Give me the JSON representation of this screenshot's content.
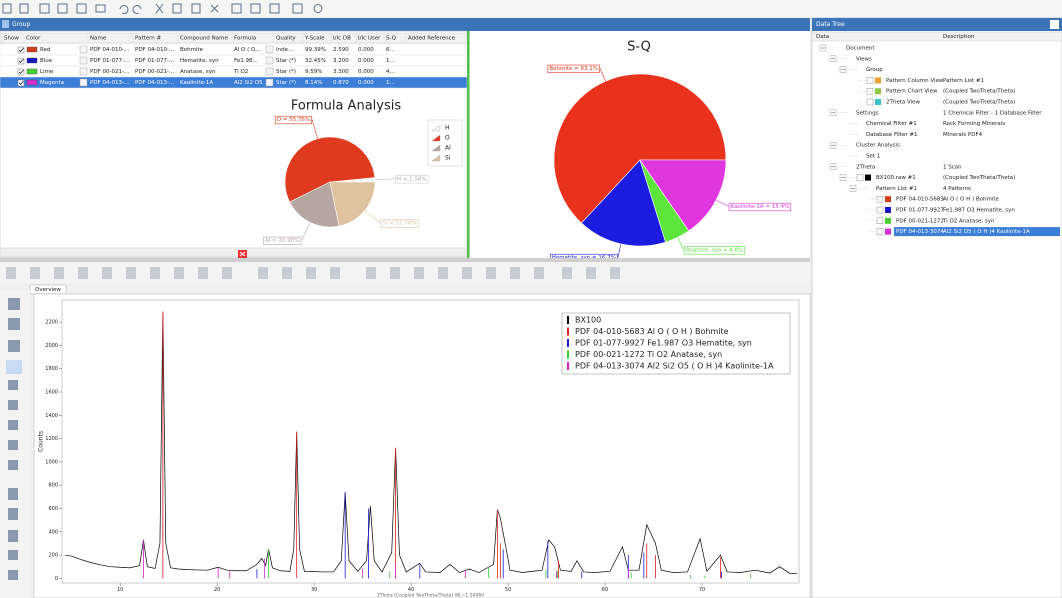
{
  "group_tab": "Group",
  "table": {
    "headers": [
      "Show",
      "Color",
      "Name",
      "Pattern #",
      "Compound Name",
      "Formula",
      "Quality",
      "Y-Scale",
      "I/Ic DB",
      "I/Ic User",
      "S-Q",
      "Added Reference"
    ],
    "rows": [
      {
        "color": "#d23c1a",
        "cells": [
          "Red",
          "PDF 04-010-...",
          "PDF 04-010-...",
          "Bohmite",
          "Al O ( O...",
          "Inde...",
          "99.39%",
          "2.590",
          "0.000",
          "6..."
        ]
      },
      {
        "color": "#1717c8",
        "cells": [
          "Blue",
          "PDF 01-077-...",
          "PDF 01-077-...",
          "Hematite, syn",
          "Fe1.98...",
          "Star (*)",
          "32.45%",
          "3.200",
          "0.000",
          "1..."
        ]
      },
      {
        "color": "#44d12e",
        "cells": [
          "Lime",
          "PDF 00-021-...",
          "PDF 00-021-...",
          "Anatase, syn",
          "Ti O2",
          "Star (*)",
          "9.59%",
          "3.300",
          "0.000",
          "4..."
        ]
      },
      {
        "color": "#d52ed5",
        "cells": [
          "Magenta",
          "PDF 04-013-...",
          "PDF 04-013-...",
          "Kaolinite-1A",
          "Al2 Si2 O5 ...",
          "Star (*)",
          "8.14%",
          "0.870",
          "0.000",
          "1..."
        ]
      }
    ],
    "selected_row": 3
  },
  "overview_tab": "Overview",
  "data_tree": {
    "title": "Data Tree",
    "headers": [
      "Data",
      "Description"
    ],
    "nodes": [
      {
        "label": "Document",
        "children": [
          {
            "label": "Views",
            "children": [
              {
                "label": "Group",
                "children": [
                  {
                    "label": "Pattern Column View",
                    "description": "Pattern List #1",
                    "color": "#f0a030"
                  },
                  {
                    "label": "Pattern Chart View",
                    "description": "(Coupled TwoTheta/Theta)",
                    "color": "#8cc840"
                  },
                  {
                    "label": "2Theta View",
                    "description": "(Coupled TwoTheta/Theta)",
                    "color": "#40c0c8"
                  }
                ]
              }
            ]
          },
          {
            "label": "Settings",
            "description": "1 Chemical Filter - 1 Database Filter",
            "children": [
              {
                "label": "Chemical Filter #1",
                "description": "Rock Forming Minerals"
              },
              {
                "label": "Database Filter #1",
                "description": "Minerals PDF4"
              }
            ]
          },
          {
            "label": "Cluster Analysis",
            "children": [
              {
                "label": "Set 1"
              }
            ]
          },
          {
            "label": "2Theta",
            "description": "1 Scan",
            "children": [
              {
                "label": "BX100.raw #1",
                "description": "(Coupled TwoTheta/Theta)",
                "color": "#000000",
                "children": [
                  {
                    "label": "Pattern List #1",
                    "description": "4 Patterns",
                    "children": [
                      {
                        "label": "PDF 04-010-5683",
                        "description": "Al O ( O H ) Bohmite",
                        "color": "#d23c1a"
                      },
                      {
                        "label": "PDF 01-077-9927",
                        "description": "Fe1.987 O3 Hematite, syn",
                        "color": "#1717c8"
                      },
                      {
                        "label": "PDF 00-021-1272",
                        "description": "Ti O2 Anatase, syn",
                        "color": "#44d12e"
                      },
                      {
                        "label": "PDF 04-013-3074",
                        "description": "Al2 Si2 O5 ( O H )4 Kaolinite-1A",
                        "color": "#d52ed5",
                        "selected": true
                      }
                    ]
                  }
                ]
              }
            ]
          }
        ]
      }
    ]
  },
  "chart_data": [
    {
      "type": "pie",
      "title": "Formula Analysis",
      "categories": [
        "H",
        "O",
        "Al",
        "Si"
      ],
      "values": [
        1.56,
        55.76,
        20.9,
        21.78
      ],
      "value_labels": [
        "H = 1.56%",
        "O = 55.76%",
        "Al = 20.90%",
        "Si = 21.78%"
      ],
      "colors": [
        "#f4f4f4",
        "#e03a1e",
        "#b5a6a2",
        "#dfc3a1"
      ],
      "legend": true
    },
    {
      "type": "pie",
      "title": "S-Q",
      "values": [
        63.1,
        16.7,
        4.8,
        15.4
      ],
      "value_labels": [
        "Bohmite = 63.1%",
        "Hematite, syn = 16.7%",
        "Anatase, syn = 4.8%",
        "Kaolinite-1A = 15.4%"
      ],
      "colors": [
        "#e8321c",
        "#1c1ce0",
        "#5ce63c",
        "#e036e0"
      ],
      "legend": false
    },
    {
      "type": "line",
      "xlabel": "2Theta (Coupled TwoTheta/Theta) WL=1.54060",
      "ylabel": "Counts",
      "xlim": [
        4,
        80
      ],
      "ylim": [
        -40,
        2390
      ],
      "xticks": [
        10,
        20,
        30,
        40,
        50,
        60,
        70
      ],
      "yticks": [
        0,
        200,
        400,
        600,
        800,
        1000,
        1200,
        1400,
        1600,
        1800,
        2000,
        2200
      ],
      "legend": "upper right",
      "series": [
        {
          "name": "BX100",
          "color": "#000000",
          "style": "line",
          "x": [
            4.3,
            5,
            6,
            7,
            8,
            9,
            10,
            11,
            12,
            12.4,
            12.8,
            13.6,
            14.1,
            14.4,
            14.7,
            15.2,
            16,
            17,
            18,
            19,
            20.1,
            21,
            22,
            23,
            24.1,
            24.6,
            25,
            25.3,
            25.7,
            26.5,
            27.5,
            27.9,
            28.2,
            28.5,
            29,
            30,
            31,
            32,
            32.8,
            33.2,
            33.6,
            34.5,
            35.4,
            35.8,
            36.2,
            37,
            38,
            38.4,
            38.8,
            39.5,
            40.9,
            41.5,
            43,
            44,
            45,
            46,
            47,
            48.5,
            48.9,
            49.2,
            49.7,
            50.2,
            51.5,
            52.5,
            53.5,
            54.2,
            54.8,
            55.4,
            56.5,
            57.1,
            57.8,
            59,
            60.5,
            61.8,
            62.4,
            63.5,
            64.3,
            65.2,
            65.8,
            67,
            68.5,
            69.8,
            70.5,
            71.9,
            72.6,
            74,
            75.5,
            77,
            78,
            79,
            79.8
          ],
          "values": [
            200,
            190,
            160,
            135,
            115,
            100,
            95,
            90,
            110,
            330,
            100,
            85,
            300,
            2290,
            300,
            90,
            80,
            75,
            72,
            70,
            95,
            70,
            65,
            65,
            120,
            170,
            110,
            250,
            90,
            65,
            60,
            250,
            1260,
            250,
            60,
            58,
            55,
            55,
            150,
            740,
            150,
            60,
            150,
            620,
            150,
            55,
            220,
            1120,
            200,
            55,
            130,
            55,
            50,
            120,
            50,
            80,
            50,
            120,
            590,
            520,
            300,
            70,
            50,
            60,
            70,
            330,
            270,
            70,
            60,
            150,
            55,
            50,
            60,
            270,
            70,
            70,
            460,
            300,
            70,
            50,
            55,
            340,
            60,
            200,
            55,
            50,
            70,
            45,
            100,
            45,
            40
          ]
        },
        {
          "name": "PDF 04-010-5683 Al O ( O H ) Bohmite",
          "color": "#e0201a",
          "style": "sticks",
          "x": [
            14.4,
            28.2,
            38.4,
            48.9,
            49.2,
            55.2,
            64.3,
            65.2,
            71.9
          ],
          "values": [
            2290,
            1260,
            1120,
            590,
            300,
            150,
            300,
            200,
            180
          ]
        },
        {
          "name": "PDF 01-077-9927 Fe1.987 O3 Hematite, syn",
          "color": "#1c1cd0",
          "style": "sticks",
          "x": [
            24.1,
            33.2,
            35.6,
            40.9,
            49.5,
            54.1,
            57.6,
            62.4,
            64.0,
            72.0
          ],
          "values": [
            80,
            740,
            600,
            120,
            250,
            320,
            60,
            200,
            220,
            60
          ]
        },
        {
          "name": "PDF 00-021-1272 Ti O2 Anatase, syn",
          "color": "#30d030",
          "style": "sticks",
          "x": [
            25.3,
            37.8,
            48.0,
            53.9,
            55.1,
            62.7,
            68.8,
            70.3,
            75.0
          ],
          "values": [
            250,
            60,
            90,
            70,
            70,
            50,
            30,
            20,
            40
          ]
        },
        {
          "name": "PDF 04-013-3074 Al2 Si2 O5 ( O H )4 Kaolinite-1A",
          "color": "#d020d0",
          "style": "sticks",
          "x": [
            12.4,
            20.1,
            21.3,
            24.9,
            35.0,
            38.4,
            45.6,
            55.0,
            62.4
          ],
          "values": [
            330,
            95,
            60,
            170,
            80,
            120,
            70,
            60,
            90
          ]
        }
      ]
    }
  ]
}
